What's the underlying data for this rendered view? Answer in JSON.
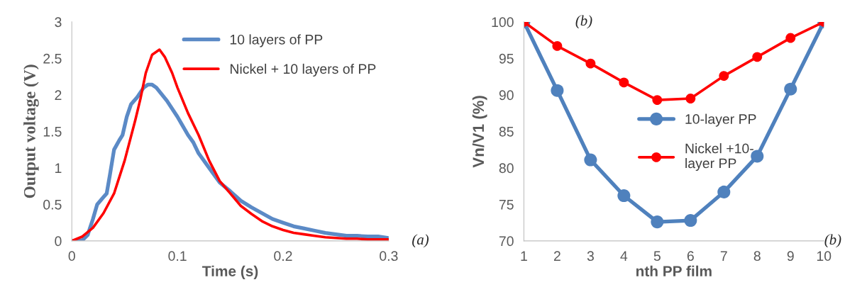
{
  "chart_data": [
    {
      "type": "line",
      "xlabel": "Time (s)",
      "ylabel": "Output voltage (V)",
      "xlim": [
        0,
        0.3
      ],
      "xticks": [
        0,
        0.1,
        0.2,
        0.3
      ],
      "ylim": [
        0,
        3
      ],
      "yticks": [
        0,
        0.5,
        1,
        1.5,
        2,
        2.5,
        3
      ],
      "legend": "top right",
      "grid": false,
      "marker": "none",
      "annotations": [
        "(a)"
      ],
      "series": [
        {
          "name": "10 layers of PP",
          "color": "#5b8ac6",
          "x": [
            0,
            0.005,
            0.01,
            0.015,
            0.02,
            0.024,
            0.03,
            0.033,
            0.036,
            0.04,
            0.045,
            0.048,
            0.052,
            0.056,
            0.062,
            0.068,
            0.072,
            0.076,
            0.08,
            0.09,
            0.1,
            0.11,
            0.115,
            0.12,
            0.13,
            0.14,
            0.15,
            0.16,
            0.17,
            0.18,
            0.19,
            0.2,
            0.21,
            0.22,
            0.23,
            0.24,
            0.25,
            0.26,
            0.27,
            0.28,
            0.29,
            0.3
          ],
          "values": [
            0,
            0,
            0.01,
            0.08,
            0.3,
            0.5,
            0.6,
            0.65,
            0.9,
            1.25,
            1.38,
            1.45,
            1.7,
            1.87,
            1.97,
            2.1,
            2.14,
            2.14,
            2.1,
            1.92,
            1.7,
            1.45,
            1.35,
            1.2,
            1.0,
            0.8,
            0.68,
            0.55,
            0.46,
            0.38,
            0.3,
            0.25,
            0.2,
            0.17,
            0.14,
            0.11,
            0.09,
            0.07,
            0.07,
            0.06,
            0.06,
            0.04
          ]
        },
        {
          "name": "Nickel + 10 layers of PP",
          "color": "#ff0000",
          "x": [
            0,
            0.01,
            0.02,
            0.03,
            0.04,
            0.05,
            0.06,
            0.065,
            0.07,
            0.076,
            0.083,
            0.088,
            0.095,
            0.1,
            0.11,
            0.12,
            0.13,
            0.14,
            0.15,
            0.16,
            0.17,
            0.18,
            0.19,
            0.2,
            0.21,
            0.22,
            0.23,
            0.24,
            0.25,
            0.26,
            0.27,
            0.28,
            0.3
          ],
          "values": [
            0,
            0.06,
            0.18,
            0.38,
            0.65,
            1.1,
            1.65,
            1.95,
            2.3,
            2.55,
            2.62,
            2.52,
            2.3,
            2.1,
            1.75,
            1.45,
            1.1,
            0.82,
            0.65,
            0.48,
            0.37,
            0.27,
            0.2,
            0.15,
            0.11,
            0.09,
            0.07,
            0.05,
            0.04,
            0.03,
            0.03,
            0.02,
            0.02
          ]
        }
      ]
    },
    {
      "type": "line",
      "xlabel": "nth PP film",
      "ylabel": "Vn/V1 (%)",
      "categories": [
        "1",
        "2",
        "3",
        "4",
        "5",
        "6",
        "7",
        "8",
        "9",
        "10"
      ],
      "ylim": [
        70,
        100
      ],
      "yticks": [
        70,
        75,
        80,
        85,
        90,
        95,
        100
      ],
      "legend": "center",
      "grid": false,
      "marker": "circle",
      "annotations": [
        "(b)",
        "(b)"
      ],
      "series": [
        {
          "name": "10-layer PP",
          "color": "#4f81bd",
          "values": [
            100,
            90.6,
            81.1,
            76.2,
            72.6,
            72.8,
            76.7,
            81.6,
            90.8,
            100
          ]
        },
        {
          "name": "Nickel +10-\nlayer PP",
          "color": "#ff0000",
          "values": [
            100,
            96.7,
            94.3,
            91.7,
            89.3,
            89.5,
            92.6,
            95.2,
            97.8,
            100
          ]
        }
      ]
    }
  ]
}
